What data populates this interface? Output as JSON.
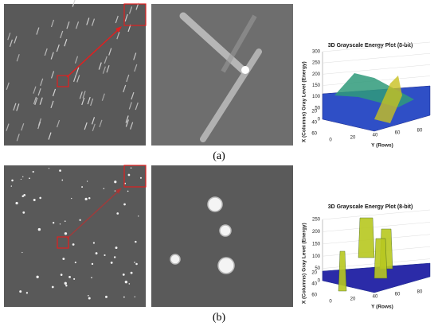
{
  "panels": [
    {
      "label": "(a)",
      "plot": {
        "title": "3D Grayscale Energy Plot (8-bit)",
        "z_label": "Gray Level (Energy)",
        "x_label": "X (Columns)",
        "y_label": "Y (Rows)",
        "z_ticks": [
          0,
          50,
          100,
          150,
          200,
          250,
          300
        ],
        "x_ticks": [
          20,
          40,
          60
        ],
        "y_ticks": [
          0,
          20,
          40,
          60,
          80
        ]
      }
    },
    {
      "label": "(b)",
      "plot": {
        "title": "3D Grayscale Energy Plot (8-bit)",
        "z_label": "Gray Level (Energy)",
        "x_label": "X (Columns)",
        "y_label": "Y (Rows)",
        "z_ticks": [
          0,
          50,
          100,
          150,
          200,
          250
        ],
        "x_ticks": [
          20,
          40,
          60
        ],
        "y_ticks": [
          0,
          20,
          40,
          60,
          80
        ]
      }
    }
  ]
}
